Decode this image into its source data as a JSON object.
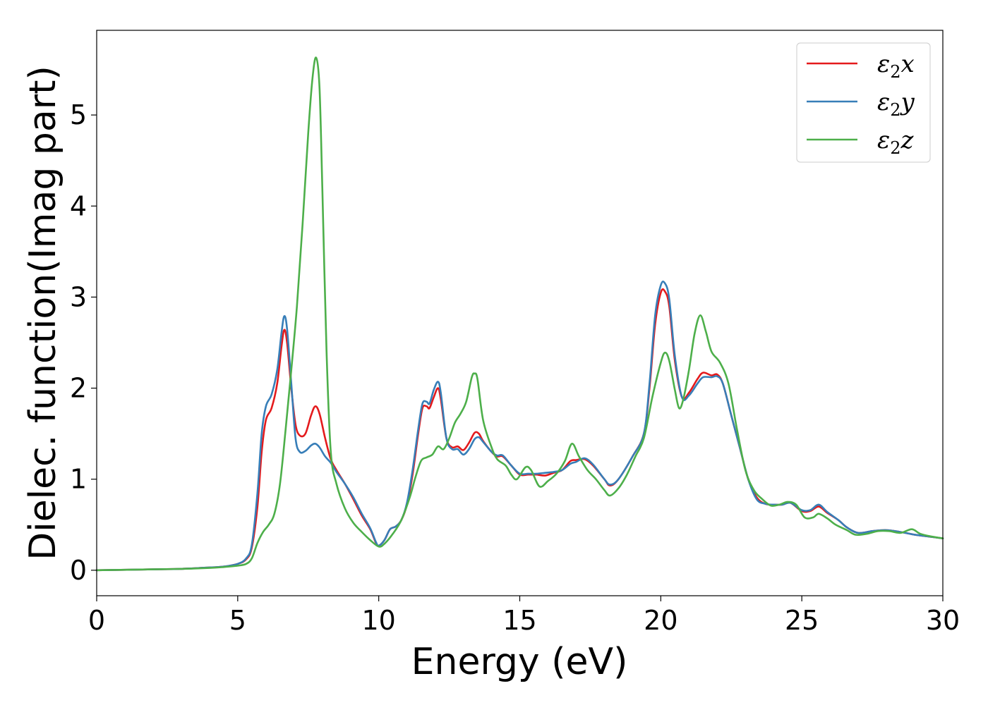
{
  "chart_data": {
    "type": "line",
    "title": "",
    "xlabel": "Energy (eV)",
    "ylabel": "Dielec. function(Imag part)",
    "xlim": [
      0,
      30
    ],
    "ylim": [
      -0.28,
      5.93
    ],
    "xticks": [
      0,
      5,
      10,
      15,
      20,
      25,
      30
    ],
    "yticks": [
      0,
      1,
      2,
      3,
      4,
      5
    ],
    "grid": false,
    "legend_position": "top-right",
    "series": [
      {
        "name": "ε2x",
        "label_base": "ε",
        "label_sub": "2",
        "label_suffix": "x",
        "color": "#e41a1c",
        "points": [
          [
            0,
            0
          ],
          [
            2,
            0.01
          ],
          [
            3,
            0.015
          ],
          [
            4,
            0.03
          ],
          [
            4.5,
            0.04
          ],
          [
            5,
            0.07
          ],
          [
            5.3,
            0.12
          ],
          [
            5.5,
            0.25
          ],
          [
            5.7,
            0.7
          ],
          [
            5.85,
            1.3
          ],
          [
            6.0,
            1.65
          ],
          [
            6.2,
            1.78
          ],
          [
            6.4,
            2.05
          ],
          [
            6.55,
            2.45
          ],
          [
            6.65,
            2.64
          ],
          [
            6.75,
            2.5
          ],
          [
            6.9,
            2.0
          ],
          [
            7.05,
            1.6
          ],
          [
            7.2,
            1.48
          ],
          [
            7.4,
            1.5
          ],
          [
            7.6,
            1.7
          ],
          [
            7.75,
            1.8
          ],
          [
            7.9,
            1.72
          ],
          [
            8.1,
            1.45
          ],
          [
            8.3,
            1.22
          ],
          [
            8.5,
            1.1
          ],
          [
            8.8,
            0.95
          ],
          [
            9.1,
            0.78
          ],
          [
            9.4,
            0.6
          ],
          [
            9.7,
            0.45
          ],
          [
            9.9,
            0.3
          ],
          [
            10.0,
            0.27
          ],
          [
            10.2,
            0.33
          ],
          [
            10.4,
            0.45
          ],
          [
            10.6,
            0.48
          ],
          [
            10.8,
            0.55
          ],
          [
            11.0,
            0.72
          ],
          [
            11.2,
            1.05
          ],
          [
            11.4,
            1.5
          ],
          [
            11.55,
            1.78
          ],
          [
            11.7,
            1.8
          ],
          [
            11.8,
            1.78
          ],
          [
            11.95,
            1.9
          ],
          [
            12.1,
            2.0
          ],
          [
            12.2,
            1.88
          ],
          [
            12.4,
            1.45
          ],
          [
            12.6,
            1.35
          ],
          [
            12.8,
            1.36
          ],
          [
            13.0,
            1.32
          ],
          [
            13.2,
            1.4
          ],
          [
            13.4,
            1.51
          ],
          [
            13.55,
            1.5
          ],
          [
            13.7,
            1.42
          ],
          [
            14.0,
            1.3
          ],
          [
            14.2,
            1.25
          ],
          [
            14.4,
            1.25
          ],
          [
            14.7,
            1.15
          ],
          [
            15.0,
            1.05
          ],
          [
            15.3,
            1.05
          ],
          [
            15.6,
            1.05
          ],
          [
            15.9,
            1.04
          ],
          [
            16.2,
            1.07
          ],
          [
            16.5,
            1.1
          ],
          [
            16.8,
            1.2
          ],
          [
            17.0,
            1.21
          ],
          [
            17.3,
            1.22
          ],
          [
            17.6,
            1.15
          ],
          [
            18.0,
            1.0
          ],
          [
            18.2,
            0.93
          ],
          [
            18.5,
            1.0
          ],
          [
            19.0,
            1.25
          ],
          [
            19.4,
            1.5
          ],
          [
            19.6,
            2.0
          ],
          [
            19.8,
            2.7
          ],
          [
            20.0,
            3.05
          ],
          [
            20.15,
            3.06
          ],
          [
            20.3,
            2.9
          ],
          [
            20.5,
            2.3
          ],
          [
            20.75,
            1.9
          ],
          [
            21.0,
            1.95
          ],
          [
            21.3,
            2.1
          ],
          [
            21.5,
            2.17
          ],
          [
            21.8,
            2.14
          ],
          [
            22.0,
            2.15
          ],
          [
            22.2,
            2.05
          ],
          [
            22.5,
            1.7
          ],
          [
            22.8,
            1.35
          ],
          [
            23.1,
            1.0
          ],
          [
            23.4,
            0.8
          ],
          [
            23.7,
            0.73
          ],
          [
            24.0,
            0.72
          ],
          [
            24.3,
            0.72
          ],
          [
            24.6,
            0.74
          ],
          [
            25.0,
            0.65
          ],
          [
            25.3,
            0.65
          ],
          [
            25.6,
            0.7
          ],
          [
            25.9,
            0.63
          ],
          [
            26.3,
            0.55
          ],
          [
            26.6,
            0.47
          ],
          [
            27.0,
            0.41
          ],
          [
            27.5,
            0.43
          ],
          [
            28.0,
            0.44
          ],
          [
            28.5,
            0.42
          ],
          [
            29.0,
            0.39
          ],
          [
            29.5,
            0.37
          ],
          [
            30.0,
            0.35
          ]
        ]
      },
      {
        "name": "ε2y",
        "label_base": "ε",
        "label_sub": "2",
        "label_suffix": "y",
        "color": "#377eb8",
        "points": [
          [
            0,
            0
          ],
          [
            2,
            0.01
          ],
          [
            3,
            0.015
          ],
          [
            4,
            0.03
          ],
          [
            4.5,
            0.04
          ],
          [
            5,
            0.07
          ],
          [
            5.3,
            0.13
          ],
          [
            5.5,
            0.28
          ],
          [
            5.7,
            0.85
          ],
          [
            5.85,
            1.5
          ],
          [
            6.0,
            1.8
          ],
          [
            6.2,
            1.93
          ],
          [
            6.4,
            2.2
          ],
          [
            6.55,
            2.6
          ],
          [
            6.65,
            2.79
          ],
          [
            6.75,
            2.65
          ],
          [
            6.9,
            2.05
          ],
          [
            7.05,
            1.45
          ],
          [
            7.2,
            1.3
          ],
          [
            7.4,
            1.31
          ],
          [
            7.6,
            1.37
          ],
          [
            7.75,
            1.39
          ],
          [
            7.9,
            1.35
          ],
          [
            8.1,
            1.25
          ],
          [
            8.3,
            1.18
          ],
          [
            8.5,
            1.08
          ],
          [
            8.8,
            0.95
          ],
          [
            9.1,
            0.8
          ],
          [
            9.4,
            0.62
          ],
          [
            9.7,
            0.46
          ],
          [
            9.9,
            0.31
          ],
          [
            10.0,
            0.27
          ],
          [
            10.2,
            0.33
          ],
          [
            10.4,
            0.45
          ],
          [
            10.6,
            0.48
          ],
          [
            10.8,
            0.55
          ],
          [
            11.0,
            0.74
          ],
          [
            11.2,
            1.1
          ],
          [
            11.4,
            1.55
          ],
          [
            11.55,
            1.83
          ],
          [
            11.7,
            1.85
          ],
          [
            11.8,
            1.83
          ],
          [
            11.95,
            1.98
          ],
          [
            12.1,
            2.07
          ],
          [
            12.2,
            1.95
          ],
          [
            12.4,
            1.45
          ],
          [
            12.6,
            1.33
          ],
          [
            12.8,
            1.33
          ],
          [
            13.0,
            1.27
          ],
          [
            13.2,
            1.33
          ],
          [
            13.4,
            1.44
          ],
          [
            13.55,
            1.46
          ],
          [
            13.7,
            1.41
          ],
          [
            14.0,
            1.3
          ],
          [
            14.2,
            1.26
          ],
          [
            14.4,
            1.26
          ],
          [
            14.7,
            1.15
          ],
          [
            15.0,
            1.06
          ],
          [
            15.3,
            1.06
          ],
          [
            15.6,
            1.06
          ],
          [
            15.9,
            1.07
          ],
          [
            16.2,
            1.08
          ],
          [
            16.5,
            1.1
          ],
          [
            16.8,
            1.17
          ],
          [
            17.0,
            1.19
          ],
          [
            17.3,
            1.23
          ],
          [
            17.6,
            1.16
          ],
          [
            18.0,
            1.0
          ],
          [
            18.2,
            0.94
          ],
          [
            18.5,
            1.0
          ],
          [
            19.0,
            1.25
          ],
          [
            19.4,
            1.5
          ],
          [
            19.6,
            2.05
          ],
          [
            19.8,
            2.8
          ],
          [
            20.0,
            3.13
          ],
          [
            20.15,
            3.15
          ],
          [
            20.3,
            2.98
          ],
          [
            20.5,
            2.35
          ],
          [
            20.75,
            1.9
          ],
          [
            21.0,
            1.92
          ],
          [
            21.3,
            2.05
          ],
          [
            21.5,
            2.12
          ],
          [
            21.8,
            2.12
          ],
          [
            22.0,
            2.13
          ],
          [
            22.2,
            2.05
          ],
          [
            22.5,
            1.7
          ],
          [
            22.8,
            1.35
          ],
          [
            23.1,
            1.0
          ],
          [
            23.4,
            0.78
          ],
          [
            23.7,
            0.73
          ],
          [
            24.0,
            0.72
          ],
          [
            24.3,
            0.72
          ],
          [
            24.6,
            0.74
          ],
          [
            25.0,
            0.66
          ],
          [
            25.3,
            0.66
          ],
          [
            25.6,
            0.72
          ],
          [
            25.9,
            0.64
          ],
          [
            26.3,
            0.55
          ],
          [
            26.6,
            0.47
          ],
          [
            27.0,
            0.41
          ],
          [
            27.5,
            0.43
          ],
          [
            28.0,
            0.44
          ],
          [
            28.5,
            0.42
          ],
          [
            29.0,
            0.39
          ],
          [
            29.5,
            0.37
          ],
          [
            30.0,
            0.35
          ]
        ]
      },
      {
        "name": "ε2z",
        "label_base": "ε",
        "label_sub": "2",
        "label_suffix": "z",
        "color": "#4daf4a",
        "points": [
          [
            0,
            0
          ],
          [
            2,
            0.01
          ],
          [
            3,
            0.015
          ],
          [
            4,
            0.025
          ],
          [
            4.5,
            0.035
          ],
          [
            5,
            0.05
          ],
          [
            5.3,
            0.07
          ],
          [
            5.5,
            0.13
          ],
          [
            5.7,
            0.3
          ],
          [
            5.9,
            0.42
          ],
          [
            6.1,
            0.5
          ],
          [
            6.3,
            0.62
          ],
          [
            6.5,
            0.95
          ],
          [
            6.7,
            1.55
          ],
          [
            6.9,
            2.2
          ],
          [
            7.1,
            2.9
          ],
          [
            7.3,
            3.8
          ],
          [
            7.5,
            4.8
          ],
          [
            7.65,
            5.4
          ],
          [
            7.78,
            5.63
          ],
          [
            7.9,
            5.3
          ],
          [
            8.0,
            4.2
          ],
          [
            8.15,
            2.4
          ],
          [
            8.3,
            1.3
          ],
          [
            8.5,
            0.95
          ],
          [
            8.8,
            0.68
          ],
          [
            9.1,
            0.52
          ],
          [
            9.4,
            0.42
          ],
          [
            9.7,
            0.33
          ],
          [
            10.0,
            0.26
          ],
          [
            10.2,
            0.29
          ],
          [
            10.5,
            0.4
          ],
          [
            10.8,
            0.55
          ],
          [
            11.1,
            0.8
          ],
          [
            11.3,
            1.02
          ],
          [
            11.5,
            1.2
          ],
          [
            11.7,
            1.24
          ],
          [
            11.9,
            1.27
          ],
          [
            12.1,
            1.36
          ],
          [
            12.3,
            1.33
          ],
          [
            12.5,
            1.45
          ],
          [
            12.7,
            1.62
          ],
          [
            12.9,
            1.72
          ],
          [
            13.1,
            1.85
          ],
          [
            13.3,
            2.12
          ],
          [
            13.4,
            2.16
          ],
          [
            13.5,
            2.1
          ],
          [
            13.7,
            1.65
          ],
          [
            14.0,
            1.35
          ],
          [
            14.2,
            1.22
          ],
          [
            14.5,
            1.15
          ],
          [
            14.7,
            1.05
          ],
          [
            14.9,
            1.0
          ],
          [
            15.2,
            1.13
          ],
          [
            15.4,
            1.1
          ],
          [
            15.7,
            0.92
          ],
          [
            16.0,
            0.98
          ],
          [
            16.3,
            1.06
          ],
          [
            16.6,
            1.2
          ],
          [
            16.85,
            1.39
          ],
          [
            17.1,
            1.25
          ],
          [
            17.4,
            1.1
          ],
          [
            17.7,
            1.0
          ],
          [
            18.0,
            0.88
          ],
          [
            18.2,
            0.82
          ],
          [
            18.5,
            0.9
          ],
          [
            18.8,
            1.05
          ],
          [
            19.1,
            1.25
          ],
          [
            19.4,
            1.45
          ],
          [
            19.7,
            1.9
          ],
          [
            20.0,
            2.28
          ],
          [
            20.15,
            2.39
          ],
          [
            20.3,
            2.3
          ],
          [
            20.5,
            1.98
          ],
          [
            20.65,
            1.78
          ],
          [
            20.8,
            1.88
          ],
          [
            21.0,
            2.2
          ],
          [
            21.2,
            2.6
          ],
          [
            21.4,
            2.8
          ],
          [
            21.6,
            2.62
          ],
          [
            21.8,
            2.4
          ],
          [
            22.1,
            2.28
          ],
          [
            22.4,
            2.05
          ],
          [
            22.7,
            1.55
          ],
          [
            23.0,
            1.1
          ],
          [
            23.3,
            0.88
          ],
          [
            23.6,
            0.78
          ],
          [
            23.9,
            0.71
          ],
          [
            24.2,
            0.72
          ],
          [
            24.5,
            0.75
          ],
          [
            24.8,
            0.72
          ],
          [
            25.1,
            0.58
          ],
          [
            25.4,
            0.58
          ],
          [
            25.6,
            0.62
          ],
          [
            25.9,
            0.57
          ],
          [
            26.2,
            0.5
          ],
          [
            26.6,
            0.44
          ],
          [
            26.9,
            0.39
          ],
          [
            27.3,
            0.4
          ],
          [
            27.7,
            0.43
          ],
          [
            28.1,
            0.43
          ],
          [
            28.5,
            0.41
          ],
          [
            28.9,
            0.45
          ],
          [
            29.2,
            0.4
          ],
          [
            29.6,
            0.37
          ],
          [
            30.0,
            0.35
          ]
        ]
      }
    ]
  }
}
